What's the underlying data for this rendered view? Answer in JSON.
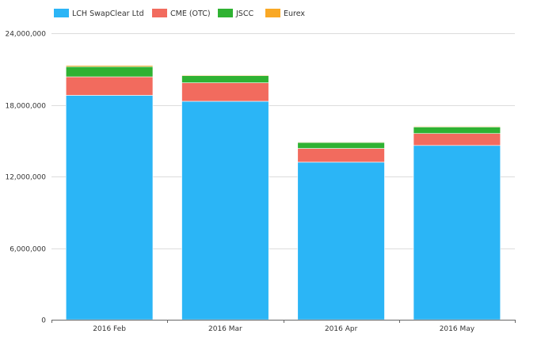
{
  "chart_data": {
    "type": "bar",
    "stacked": true,
    "title": "",
    "xlabel": "",
    "ylabel": "",
    "categories": [
      "2016 Feb",
      "2016 Mar",
      "2016 Apr",
      "2016 May"
    ],
    "series": [
      {
        "name": "LCH SwapClear Ltd",
        "color": "#2bb5f6",
        "values": [
          18800000,
          18300000,
          13200000,
          14600000
        ]
      },
      {
        "name": "CME (OTC)",
        "color": "#f26b5e",
        "values": [
          1550000,
          1550000,
          1150000,
          1000000
        ]
      },
      {
        "name": "JSCC",
        "color": "#2fb232",
        "values": [
          850000,
          600000,
          500000,
          550000
        ]
      },
      {
        "name": "Eurex",
        "color": "#f9a825",
        "values": [
          100000,
          60000,
          50000,
          60000
        ]
      }
    ],
    "ylim": [
      0,
      24000000
    ],
    "yticks": [
      0,
      6000000,
      12000000,
      18000000,
      24000000
    ],
    "ytick_labels": [
      "0",
      "6,000,000",
      "12,000,000",
      "18,000,000",
      "24,000,000"
    ],
    "grid": true,
    "legend_position": "top-left"
  }
}
